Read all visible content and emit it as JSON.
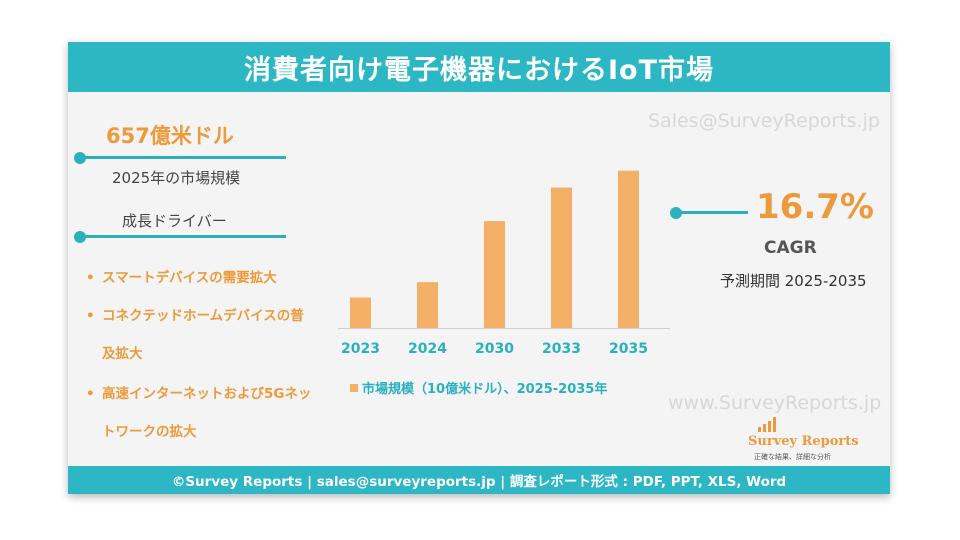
{
  "header": {
    "title": "消費者向け電子機器におけるIoT市場"
  },
  "watermarks": {
    "top": "Sales@SurveyReports.jp",
    "bottom": "www.SurveyReports.jp"
  },
  "market": {
    "value": "657億米ドル",
    "caption": "2025年の市場規模"
  },
  "drivers": {
    "heading": "成長ドライバー",
    "bullet": "•",
    "items": [
      "スマートデバイスの需要拡大",
      "コネクテッドホームデバイスの普",
      "及拡大",
      "高速インターネットおよび5Gネッ",
      "トワークの拡大"
    ]
  },
  "cagr": {
    "value": "16.7%",
    "label": "CAGR",
    "period": "予測期間 2025-2035"
  },
  "chart_data": {
    "type": "bar",
    "categories": [
      "2023",
      "2024",
      "2030",
      "2033",
      "2035"
    ],
    "values": [
      20,
      30,
      70,
      92,
      103
    ],
    "ylim": [
      0,
      110
    ],
    "legend": "市場規模（10億米ドル）、2025-2035年",
    "legend_position": "bottom",
    "bar_color": "#f4b067",
    "grid": false
  },
  "logo": {
    "name": "Survey Reports",
    "tagline": "正確な結果、詳細な分析"
  },
  "footer": {
    "text": "©Survey Reports | sales@surveyreports.jp |  調査レポート形式 : PDF, PPT, XLS, Word"
  },
  "colors": {
    "teal": "#2db6c4",
    "orange": "#ec9a3c",
    "bar": "#f4b067"
  }
}
